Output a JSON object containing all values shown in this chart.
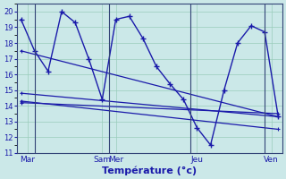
{
  "xlabel": "Température (°c)",
  "background_color": "#cbe8e8",
  "grid_color": "#99ccbb",
  "line_color": "#1a1aaa",
  "ylim": [
    11,
    20.5
  ],
  "yticks": [
    11,
    12,
    13,
    14,
    15,
    16,
    17,
    18,
    19,
    20
  ],
  "xlim": [
    -0.3,
    19.3
  ],
  "day_labels": [
    "Mar",
    "Sam",
    "Mer",
    "Jeu",
    "Ven"
  ],
  "day_positions": [
    0.5,
    6.0,
    7.0,
    13.0,
    18.5
  ],
  "vlines": [
    1.0,
    6.5,
    12.5,
    18.0
  ],
  "series": [
    {
      "x": [
        0,
        1,
        2,
        3,
        4,
        5,
        6,
        7,
        8,
        9,
        10,
        11,
        12,
        13,
        14,
        15,
        16,
        17,
        18,
        19
      ],
      "y": [
        19.5,
        17.5,
        16.2,
        20.0,
        19.3,
        17.0,
        14.4,
        19.5,
        19.7,
        18.3,
        16.5,
        15.4,
        14.4,
        12.6,
        11.5,
        15.0,
        18.0,
        19.1,
        18.7,
        13.3
      ]
    },
    {
      "x": [
        0,
        19
      ],
      "y": [
        17.5,
        13.3
      ]
    },
    {
      "x": [
        0,
        19
      ],
      "y": [
        14.8,
        13.3
      ]
    },
    {
      "x": [
        0,
        19
      ],
      "y": [
        14.3,
        12.5
      ]
    },
    {
      "x": [
        0,
        19
      ],
      "y": [
        14.2,
        13.5
      ]
    }
  ]
}
